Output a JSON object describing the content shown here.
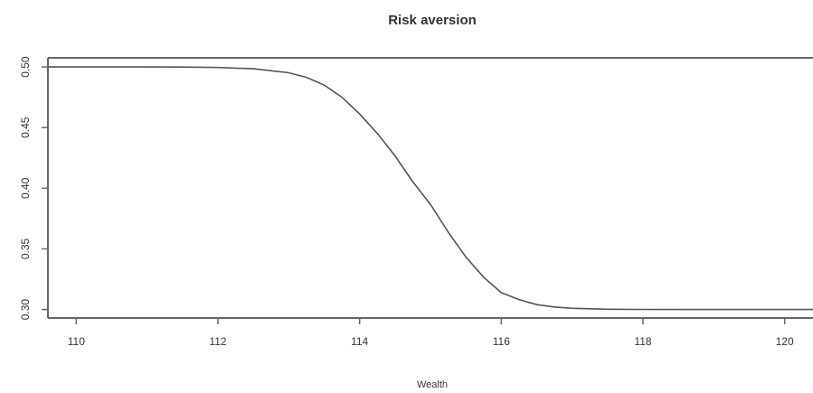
{
  "chart_data": {
    "type": "line",
    "title": "Risk aversion",
    "xlabel": "Wealth",
    "ylabel": "",
    "xlim": [
      109.6,
      120.4
    ],
    "ylim": [
      0.293,
      0.5075
    ],
    "x_ticks": [
      "110",
      "112",
      "114",
      "116",
      "118",
      "120"
    ],
    "y_ticks": [
      "0.30",
      "0.35",
      "0.40",
      "0.45",
      "0.50"
    ],
    "grid": false,
    "series": [
      {
        "color": "#555555",
        "x": [
          109.6,
          110,
          110.5,
          111,
          111.5,
          112,
          112.5,
          113,
          113.25,
          113.5,
          113.75,
          114,
          114.25,
          114.5,
          114.75,
          115,
          115.25,
          115.5,
          115.75,
          116,
          116.25,
          116.5,
          116.75,
          117,
          117.5,
          118,
          118.5,
          119,
          119.5,
          120,
          120.4
        ],
        "y": [
          0.5,
          0.5,
          0.5,
          0.5,
          0.4999,
          0.4995,
          0.4985,
          0.4952,
          0.4914,
          0.485,
          0.475,
          0.4612,
          0.4451,
          0.4267,
          0.4054,
          0.3867,
          0.3638,
          0.3433,
          0.3267,
          0.3139,
          0.3082,
          0.304,
          0.3021,
          0.301,
          0.3002,
          0.30005,
          0.3,
          0.3,
          0.3,
          0.3,
          0.3
        ]
      }
    ]
  }
}
